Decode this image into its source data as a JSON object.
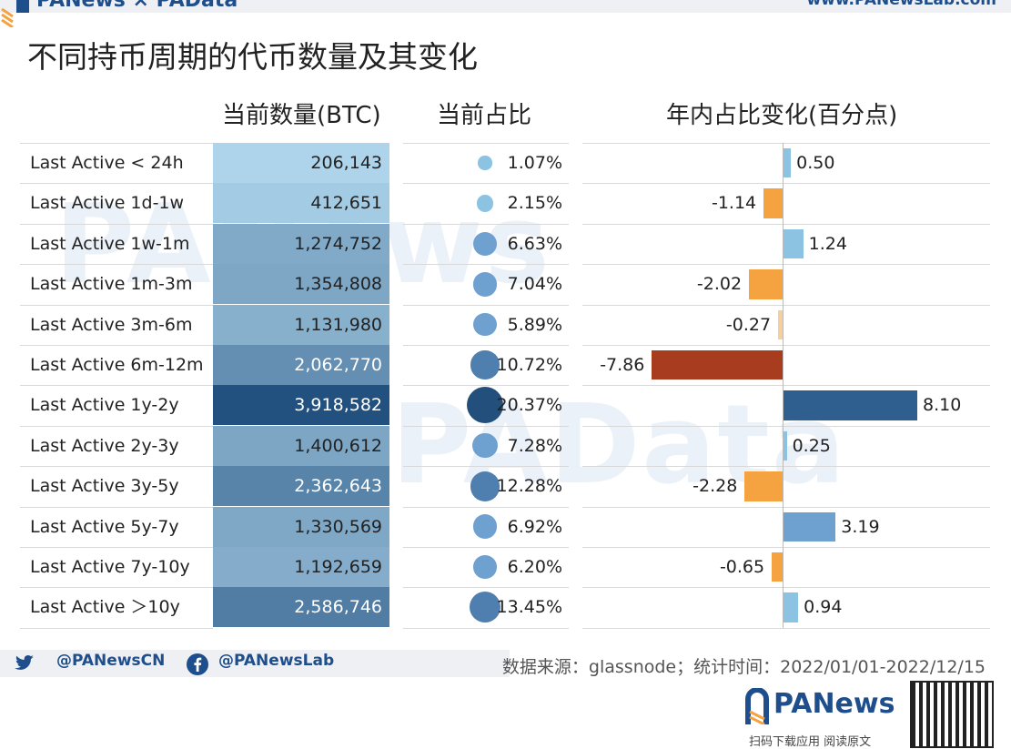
{
  "header": {
    "brand": "PANews × PAData",
    "url": "www.PANewsLab.com",
    "title": "不同持币周期的代币数量及其变化"
  },
  "watermarks": [
    "PANews",
    "PAData"
  ],
  "columns": {
    "amount": "当前数量(BTC)",
    "share": "当前占比",
    "change": "年内占比变化(百分点)"
  },
  "colors": {
    "positive": "#8cc3e2",
    "negative": "#f4a340",
    "dark_blue": "#2f5f8e",
    "dark_red": "#a83c1f"
  },
  "chart_data": {
    "type": "table",
    "title": "不同持币周期的代币数量及其变化",
    "categories": [
      "Last Active < 24h",
      "Last Active 1d-1w",
      "Last Active 1w-1m",
      "Last Active 1m-3m",
      "Last Active 3m-6m",
      "Last Active 6m-12m",
      "Last Active 1y-2y",
      "Last Active 2y-3y",
      "Last Active 3y-5y",
      "Last Active 5y-7y",
      "Last Active 7y-10y",
      "Last Active ＞10y"
    ],
    "amount_labels": [
      "206,143",
      "412,651",
      "1,274,752",
      "1,354,808",
      "1,131,980",
      "2,062,770",
      "3,918,582",
      "1,400,612",
      "2,362,643",
      "1,330,569",
      "1,192,659",
      "2,586,746"
    ],
    "amounts": [
      206143,
      412651,
      1274752,
      1354808,
      1131980,
      2062770,
      3918582,
      1400612,
      2362643,
      1330569,
      1192659,
      2586746
    ],
    "share_labels": [
      "1.07%",
      "2.15%",
      "6.63%",
      "7.04%",
      "5.89%",
      "10.72%",
      "20.37%",
      "7.28%",
      "12.28%",
      "6.92%",
      "6.20%",
      "13.45%"
    ],
    "shares": [
      1.07,
      2.15,
      6.63,
      7.04,
      5.89,
      10.72,
      20.37,
      7.28,
      12.28,
      6.92,
      6.2,
      13.45
    ],
    "change_labels": [
      "0.50",
      "-1.14",
      "1.24",
      "-2.02",
      "-0.27",
      "-7.86",
      "8.10",
      "0.25",
      "-2.28",
      "3.19",
      "-0.65",
      "0.94"
    ],
    "changes": [
      0.5,
      -1.14,
      1.24,
      -2.02,
      -0.27,
      -7.86,
      8.1,
      0.25,
      -2.28,
      3.19,
      -0.65,
      0.94
    ]
  },
  "footer": {
    "twitter": "@PANewsCN",
    "facebook": "@PANewsLab",
    "source": "数据来源：glassnode；统计时间：2022/01/01-2022/12/15",
    "brand": "PANews",
    "brand_sub": "扫码下载应用 阅读原文"
  }
}
